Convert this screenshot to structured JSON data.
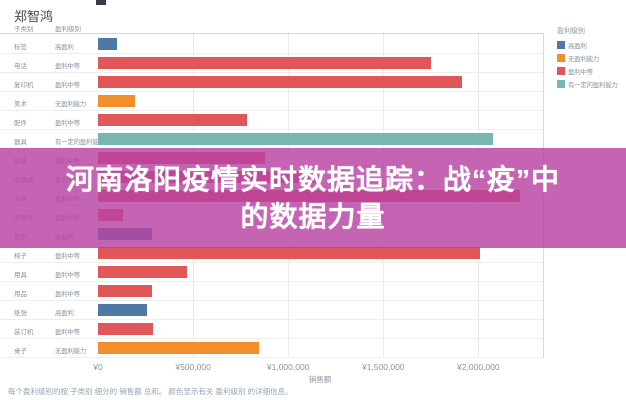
{
  "header": {
    "title": "郑智鸿"
  },
  "columns": {
    "subcategory": "子类别",
    "profit_level": "盈利级别"
  },
  "legend": {
    "title": "盈利级别",
    "items": [
      {
        "label": "高盈利",
        "color": "#4e79a7"
      },
      {
        "label": "无盈利能力",
        "color": "#f28e2b"
      },
      {
        "label": "盈利中等",
        "color": "#e15759"
      },
      {
        "label": "有一定的盈利能力",
        "color": "#76b7b2"
      }
    ]
  },
  "banner": {
    "line1": "河南洛阳疫情实时数据追踪：战“疫”中",
    "line2": "的数据力量",
    "bg_color": "#b842a2",
    "text_color": "#ffffff"
  },
  "caption": {
    "text": "每个盈利级别的按 子类别 细分的 销售额 总和。 颜色显示有关 盈利级别 的详细信息。"
  },
  "chart_data": {
    "type": "bar",
    "orientation": "horizontal",
    "title": "郑智鸿",
    "xlabel": "销售额",
    "xlim": [
      0,
      2340000
    ],
    "grid": true,
    "legend_position": "top-right",
    "x_ticks": [
      {
        "label": "¥0",
        "value": 0
      },
      {
        "label": "¥500,000",
        "value": 500000
      },
      {
        "label": "¥1,000,000",
        "value": 1000000
      },
      {
        "label": "¥1,500,000",
        "value": 1500000
      },
      {
        "label": "¥2,000,000",
        "value": 2000000
      }
    ],
    "color_map": {
      "高盈利": "#4e79a7",
      "无盈利能力": "#f28e2b",
      "盈利中等": "#e15759",
      "有一定的盈利能力": "#76b7b2"
    },
    "rows": [
      {
        "subcategory": "标签",
        "profit_level": "高盈利",
        "sales": 100000
      },
      {
        "subcategory": "电话",
        "profit_level": "盈利中等",
        "sales": 1750000
      },
      {
        "subcategory": "复印机",
        "profit_level": "盈利中等",
        "sales": 1915000
      },
      {
        "subcategory": "美术",
        "profit_level": "无盈利能力",
        "sales": 195000
      },
      {
        "subcategory": "配件",
        "profit_level": "盈利中等",
        "sales": 785000
      },
      {
        "subcategory": "器具",
        "profit_level": "有一定的盈利能力",
        "sales": 2075000
      },
      {
        "subcategory": "设备",
        "profit_level": "盈利中等",
        "sales": 880000
      },
      {
        "subcategory": "收纳具",
        "profit_level": "盈利中等",
        "sales": 1150000
      },
      {
        "subcategory": "书架",
        "profit_level": "盈利中等",
        "sales": 2220000
      },
      {
        "subcategory": "系固件",
        "profit_level": "盈利中等",
        "sales": 130000
      },
      {
        "subcategory": "信封",
        "profit_level": "高盈利",
        "sales": 285000
      },
      {
        "subcategory": "椅子",
        "profit_level": "盈利中等",
        "sales": 2010000
      },
      {
        "subcategory": "用具",
        "profit_level": "盈利中等",
        "sales": 470000
      },
      {
        "subcategory": "用品",
        "profit_level": "盈利中等",
        "sales": 285000
      },
      {
        "subcategory": "纸张",
        "profit_level": "高盈利",
        "sales": 260000
      },
      {
        "subcategory": "装订机",
        "profit_level": "盈利中等",
        "sales": 290000
      },
      {
        "subcategory": "桌子",
        "profit_level": "无盈利能力",
        "sales": 845000
      }
    ]
  }
}
